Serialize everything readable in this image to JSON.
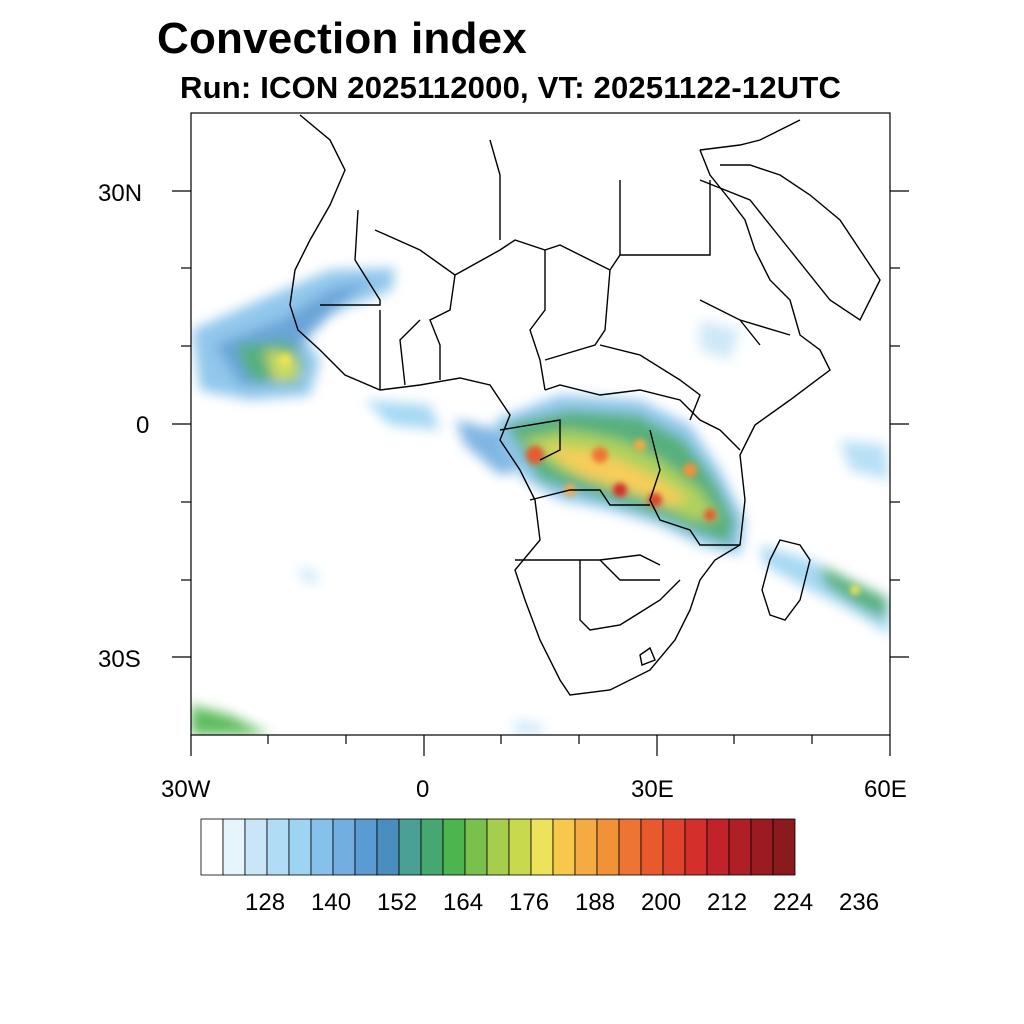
{
  "header": {
    "title": "Convection index",
    "subtitle": "Run: ICON 2025112000,  VT: 20251122-12UTC"
  },
  "axes": {
    "lat_labels": [
      "30N",
      "0",
      "30S"
    ],
    "lon_labels": [
      "30W",
      "0",
      "30E",
      "60E"
    ],
    "lon_range": [
      -30,
      60
    ],
    "lat_range": [
      -40,
      40
    ]
  },
  "colorbar": {
    "tick_labels": [
      "128",
      "140",
      "152",
      "164",
      "176",
      "188",
      "200",
      "212",
      "224",
      "236"
    ],
    "colors": [
      "#ffffff",
      "#e6f4fc",
      "#c8e6f7",
      "#b0dcf5",
      "#9cd4f2",
      "#85c1ea",
      "#72aee0",
      "#5a9bd4",
      "#4a8ec0",
      "#4aa095",
      "#45a870",
      "#4db54e",
      "#7ac04c",
      "#a6ce4c",
      "#c9d94d",
      "#ece35a",
      "#f7c84a",
      "#f6aa42",
      "#f29238",
      "#ee7433",
      "#e85a2e",
      "#e0432b",
      "#d42f2b",
      "#c22229",
      "#b01e26",
      "#9c1a22",
      "#8a1a1d"
    ]
  }
}
